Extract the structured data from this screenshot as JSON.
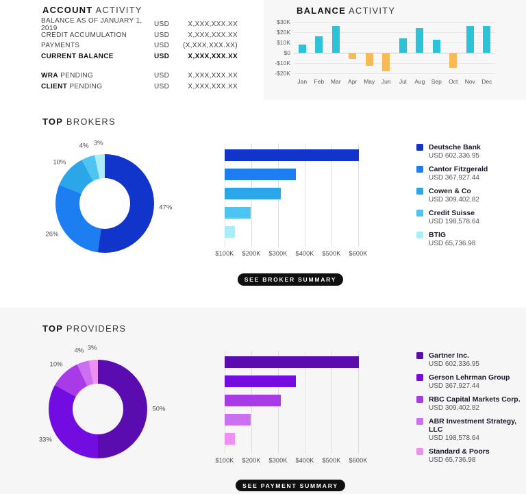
{
  "account_activity": {
    "title": {
      "bold": "ACCOUNT",
      "rest": " ACTIVITY"
    },
    "rows": [
      {
        "label": "BALANCE AS OF JANUARY 1, 2019",
        "currency": "USD",
        "value": "X,XXX,XXX.XX",
        "bold": false
      },
      {
        "label": "CREDIT ACCUMULATION",
        "currency": "USD",
        "value": "X,XXX,XXX.XX",
        "bold": false
      },
      {
        "label": "PAYMENTS",
        "currency": "USD",
        "value": "(X,XXX,XXX.XX)",
        "bold": false
      },
      {
        "label": "CURRENT BALANCE",
        "currency": "USD",
        "value": "X,XXX,XXX.XX",
        "bold": true
      }
    ],
    "pending_rows": [
      {
        "label_bold": "WRA",
        "label_rest": " PENDING",
        "currency": "USD",
        "value": "X,XXX,XXX.XX"
      },
      {
        "label_bold": "CLIENT",
        "label_rest": " PENDING",
        "currency": "USD",
        "value": "X,XXX,XXX.XX"
      }
    ]
  },
  "balance_activity": {
    "title": {
      "bold": "BALANCE",
      "rest": " ACTIVITY"
    }
  },
  "top_brokers": {
    "title": {
      "bold": "TOP",
      "rest": " BROKERS"
    },
    "button_label": "SEE BROKER SUMMARY",
    "legend": [
      {
        "name": "Deutsche Bank",
        "value": "USD 602,336.95",
        "color": "#1134cb"
      },
      {
        "name": "Cantor Fitzgerald",
        "value": "USD 367,927.44",
        "color": "#1d7ef2"
      },
      {
        "name": "Cowen & Co",
        "value": "USD 309,402.82",
        "color": "#2ba6e8"
      },
      {
        "name": "Credit Suisse",
        "value": "USD 198,578.64",
        "color": "#4ec4f2"
      },
      {
        "name": "BTIG",
        "value": "USD 65,736.98",
        "color": "#abecfa"
      }
    ]
  },
  "top_providers": {
    "title": {
      "bold": "TOP",
      "rest": " PROVIDERS"
    },
    "button_label": "SEE PAYMENT SUMMARY",
    "legend": [
      {
        "name": "Gartner Inc.",
        "value": "USD 602,336.95",
        "color": "#5a0cb0"
      },
      {
        "name": "Gerson Lehrman Group",
        "value": "USD 367,927.44",
        "color": "#720ce0"
      },
      {
        "name": "RBC Capital Markets Corp.",
        "value": "USD 309,402.82",
        "color": "#a93ae8"
      },
      {
        "name": "ABR Investment Strategy, LLC",
        "value": "USD 198,578.64",
        "color": "#cb70f0"
      },
      {
        "name": "Standard & Poors",
        "value": "USD 65,736.98",
        "color": "#f08ff2"
      }
    ]
  },
  "chart_data": [
    {
      "id": "balance_activity_bars",
      "type": "bar",
      "title": "BALANCE ACTIVITY",
      "categories": [
        "Jan",
        "Feb",
        "Mar",
        "Apr",
        "May",
        "Jun",
        "Jul",
        "Aug",
        "Sep",
        "Oct",
        "Nov",
        "Dec"
      ],
      "values_usd_k": [
        8,
        16,
        26,
        -5,
        -12,
        -17,
        14,
        24,
        13,
        -14,
        26,
        26
      ],
      "y_ticks": [
        "$30K",
        "$20K",
        "$10K",
        "$0",
        "-$10K",
        "-$20K"
      ],
      "ylim_k": [
        -20,
        30
      ],
      "grid": true,
      "positive_color": "#2cc3d9",
      "negative_color": "#f7ba55"
    },
    {
      "id": "brokers_donut",
      "type": "pie",
      "labels": [
        "47%",
        "26%",
        "10%",
        "4%",
        "3%"
      ],
      "values": [
        47,
        26,
        10,
        4,
        3
      ],
      "colors": [
        "#1134cb",
        "#1d7ef2",
        "#2ba6e8",
        "#4ec4f2",
        "#abecfa"
      ],
      "inner_radius_ratio": 0.51
    },
    {
      "id": "brokers_hbars",
      "type": "bar",
      "orientation": "horizontal",
      "categories": [
        "Deutsche Bank",
        "Cantor Fitzgerald",
        "Cowen & Co",
        "Credit Suisse",
        "BTIG"
      ],
      "values_usd": [
        602336.95,
        367927.44,
        309402.82,
        198578.64,
        65736.98
      ],
      "x_ticks": [
        "$100K",
        "$200K",
        "$300K",
        "$400K",
        "$500K",
        "$600K"
      ],
      "x_tick_values_usd": [
        100000,
        200000,
        300000,
        400000,
        500000,
        600000
      ],
      "colors": [
        "#1134cb",
        "#1d7ef2",
        "#2ba6e8",
        "#4ec4f2",
        "#abecfa"
      ],
      "grid": true
    },
    {
      "id": "providers_donut",
      "type": "pie",
      "labels": [
        "50%",
        "33%",
        "10%",
        "4%",
        "3%"
      ],
      "values": [
        50,
        33,
        10,
        4,
        3
      ],
      "colors": [
        "#5a0cb0",
        "#720ce0",
        "#a93ae8",
        "#cb70f0",
        "#f08ff2"
      ],
      "inner_radius_ratio": 0.51
    },
    {
      "id": "providers_hbars",
      "type": "bar",
      "orientation": "horizontal",
      "categories": [
        "Gartner Inc.",
        "Gerson Lehrman Group",
        "RBC Capital Markets Corp.",
        "ABR Investment Strategy, LLC",
        "Standard & Poors"
      ],
      "values_usd": [
        602336.95,
        367927.44,
        309402.82,
        198578.64,
        65736.98
      ],
      "x_ticks": [
        "$100K",
        "$200K",
        "$300K",
        "$400K",
        "$500K",
        "$600K"
      ],
      "x_tick_values_usd": [
        100000,
        200000,
        300000,
        400000,
        500000,
        600000
      ],
      "colors": [
        "#5a0cb0",
        "#720ce0",
        "#a93ae8",
        "#cb70f0",
        "#f08ff2"
      ],
      "grid": true
    }
  ]
}
